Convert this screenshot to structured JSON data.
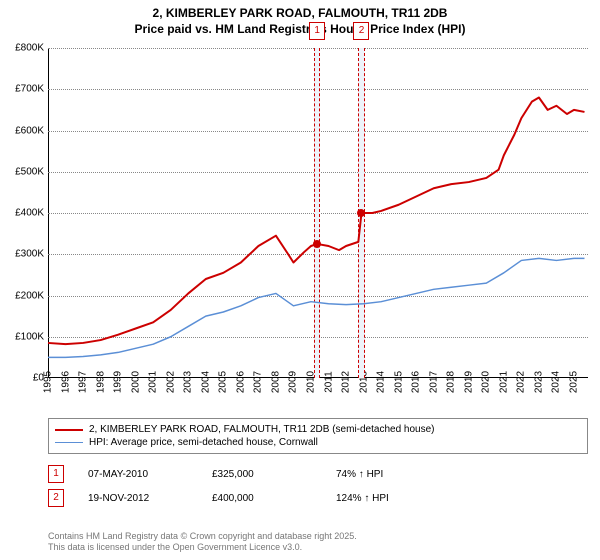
{
  "title": {
    "line1": "2, KIMBERLEY PARK ROAD, FALMOUTH, TR11 2DB",
    "line2": "Price paid vs. HM Land Registry's House Price Index (HPI)",
    "fontsize": 12,
    "weight": "bold"
  },
  "chart": {
    "type": "line",
    "background_color": "#ffffff",
    "grid_color": "#888888",
    "axis_color": "#000000",
    "x": {
      "min": 1995,
      "max": 2025.8,
      "ticks": [
        1995,
        1996,
        1997,
        1998,
        1999,
        2000,
        2001,
        2002,
        2003,
        2004,
        2005,
        2006,
        2007,
        2008,
        2009,
        2010,
        2011,
        2012,
        2013,
        2014,
        2015,
        2016,
        2017,
        2018,
        2019,
        2020,
        2021,
        2022,
        2023,
        2024,
        2025
      ],
      "tick_fontsize": 10,
      "tick_rotation": -90
    },
    "y": {
      "min": 0,
      "max": 800000,
      "ticks": [
        0,
        100000,
        200000,
        300000,
        400000,
        500000,
        600000,
        700000,
        800000
      ],
      "tick_labels": [
        "£0",
        "£100K",
        "£200K",
        "£300K",
        "£400K",
        "£500K",
        "£600K",
        "£700K",
        "£800K"
      ],
      "tick_fontsize": 10
    },
    "series": [
      {
        "id": "property",
        "label": "2, KIMBERLEY PARK ROAD, FALMOUTH, TR11 2DB (semi-detached house)",
        "color": "#cc0000",
        "line_width": 2,
        "data": [
          [
            1995,
            85000
          ],
          [
            1996,
            82000
          ],
          [
            1997,
            85000
          ],
          [
            1998,
            92000
          ],
          [
            1999,
            105000
          ],
          [
            2000,
            120000
          ],
          [
            2001,
            135000
          ],
          [
            2002,
            165000
          ],
          [
            2003,
            205000
          ],
          [
            2004,
            240000
          ],
          [
            2005,
            255000
          ],
          [
            2006,
            280000
          ],
          [
            2007,
            320000
          ],
          [
            2008,
            345000
          ],
          [
            2008.7,
            300000
          ],
          [
            2009,
            280000
          ],
          [
            2009.6,
            305000
          ],
          [
            2010,
            320000
          ],
          [
            2010.35,
            325000
          ],
          [
            2011,
            320000
          ],
          [
            2011.6,
            310000
          ],
          [
            2012,
            320000
          ],
          [
            2012.7,
            330000
          ],
          [
            2012.88,
            400000
          ],
          [
            2013.5,
            400000
          ],
          [
            2014,
            405000
          ],
          [
            2015,
            420000
          ],
          [
            2016,
            440000
          ],
          [
            2017,
            460000
          ],
          [
            2018,
            470000
          ],
          [
            2019,
            475000
          ],
          [
            2020,
            485000
          ],
          [
            2020.7,
            505000
          ],
          [
            2021,
            540000
          ],
          [
            2021.6,
            590000
          ],
          [
            2022,
            630000
          ],
          [
            2022.6,
            670000
          ],
          [
            2023,
            680000
          ],
          [
            2023.5,
            650000
          ],
          [
            2024,
            660000
          ],
          [
            2024.6,
            640000
          ],
          [
            2025,
            650000
          ],
          [
            2025.6,
            645000
          ]
        ]
      },
      {
        "id": "hpi",
        "label": "HPI: Average price, semi-detached house, Cornwall",
        "color": "#5b8fd6",
        "line_width": 1.5,
        "data": [
          [
            1995,
            50000
          ],
          [
            1996,
            50000
          ],
          [
            1997,
            52000
          ],
          [
            1998,
            56000
          ],
          [
            1999,
            62000
          ],
          [
            2000,
            72000
          ],
          [
            2001,
            82000
          ],
          [
            2002,
            100000
          ],
          [
            2003,
            125000
          ],
          [
            2004,
            150000
          ],
          [
            2005,
            160000
          ],
          [
            2006,
            175000
          ],
          [
            2007,
            195000
          ],
          [
            2008,
            205000
          ],
          [
            2009,
            175000
          ],
          [
            2010,
            185000
          ],
          [
            2011,
            180000
          ],
          [
            2012,
            178000
          ],
          [
            2013,
            180000
          ],
          [
            2014,
            185000
          ],
          [
            2015,
            195000
          ],
          [
            2016,
            205000
          ],
          [
            2017,
            215000
          ],
          [
            2018,
            220000
          ],
          [
            2019,
            225000
          ],
          [
            2020,
            230000
          ],
          [
            2021,
            255000
          ],
          [
            2022,
            285000
          ],
          [
            2023,
            290000
          ],
          [
            2024,
            285000
          ],
          [
            2025,
            290000
          ],
          [
            2025.6,
            290000
          ]
        ]
      }
    ],
    "sale_markers": [
      {
        "n": "1",
        "x": 2010.35,
        "y": 325000,
        "band_width_years": 0.35
      },
      {
        "n": "2",
        "x": 2012.88,
        "y": 400000,
        "band_width_years": 0.35
      }
    ],
    "sale_dot_color": "#cc0000",
    "sale_dot_size": 8
  },
  "legend": {
    "border_color": "#888888",
    "fontsize": 10
  },
  "sales_table": {
    "rows": [
      {
        "n": "1",
        "date": "07-MAY-2010",
        "price": "£325,000",
        "vs_hpi": "74% ↑ HPI"
      },
      {
        "n": "2",
        "date": "19-NOV-2012",
        "price": "£400,000",
        "vs_hpi": "124% ↑ HPI"
      }
    ],
    "fontsize": 10,
    "num_box_color": "#cc0000"
  },
  "footer": {
    "line1": "Contains HM Land Registry data © Crown copyright and database right 2025.",
    "line2": "This data is licensed under the Open Government Licence v3.0.",
    "color": "#777777",
    "fontsize": 9
  }
}
